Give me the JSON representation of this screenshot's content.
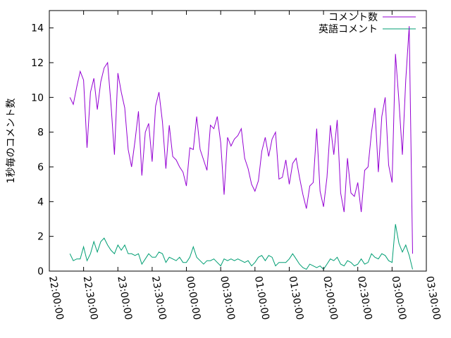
{
  "chart_data": {
    "type": "line",
    "ylabel": "1秒毎のコメント数",
    "ylim": [
      0,
      15
    ],
    "yticks": [
      0,
      2,
      4,
      6,
      8,
      10,
      12,
      14
    ],
    "xticks": [
      "22:00:00",
      "22:30:00",
      "23:00:00",
      "23:30:00",
      "00:00:00",
      "00:30:00",
      "01:00:00",
      "01:30:00",
      "02:00:00",
      "02:30:00",
      "03:00:00",
      "03:30:00"
    ],
    "xlim_minutes": [
      0,
      330
    ],
    "legend_position": "top-right",
    "grid": false,
    "x_step_minutes": 3,
    "x_start_minutes": 18,
    "series": [
      {
        "name": "コメント数",
        "color": "#9400d3",
        "values": [
          10.0,
          9.6,
          10.6,
          11.5,
          11.0,
          7.1,
          10.3,
          11.1,
          9.3,
          10.9,
          11.7,
          12.0,
          9.6,
          6.7,
          11.4,
          10.3,
          9.4,
          7.0,
          6.0,
          7.5,
          9.2,
          5.5,
          8.0,
          8.5,
          6.3,
          9.5,
          10.3,
          8.6,
          5.9,
          8.4,
          6.6,
          6.4,
          6.0,
          5.7,
          4.9,
          7.1,
          7.0,
          8.9,
          7.0,
          6.4,
          5.8,
          8.4,
          8.2,
          8.9,
          7.4,
          4.4,
          7.7,
          7.2,
          7.6,
          7.8,
          8.2,
          6.5,
          5.9,
          5.0,
          4.6,
          5.2,
          6.9,
          7.7,
          6.6,
          7.6,
          8.0,
          5.3,
          5.4,
          6.4,
          5.0,
          6.2,
          6.5,
          5.4,
          4.4,
          3.6,
          4.9,
          5.1,
          8.2,
          4.6,
          3.7,
          5.4,
          8.4,
          6.7,
          8.7,
          4.5,
          3.4,
          6.5,
          4.5,
          4.3,
          5.1,
          3.4,
          5.8,
          6.0,
          8.0,
          9.4,
          5.7,
          8.9,
          10.0,
          6.1,
          5.1,
          12.5,
          9.8,
          6.7,
          11.0,
          14.1,
          1.0
        ]
      },
      {
        "name": "英語コメント",
        "color": "#009e73",
        "values": [
          1.0,
          0.6,
          0.7,
          0.7,
          1.4,
          0.6,
          1.0,
          1.7,
          1.1,
          1.7,
          1.9,
          1.5,
          1.2,
          1.0,
          1.5,
          1.2,
          1.5,
          1.0,
          1.0,
          0.9,
          1.0,
          0.4,
          0.7,
          1.0,
          0.8,
          0.8,
          1.1,
          1.0,
          0.5,
          0.8,
          0.7,
          0.6,
          0.8,
          0.5,
          0.5,
          0.8,
          1.4,
          0.8,
          0.6,
          0.4,
          0.6,
          0.6,
          0.7,
          0.5,
          0.3,
          0.7,
          0.6,
          0.7,
          0.6,
          0.7,
          0.6,
          0.5,
          0.6,
          0.3,
          0.5,
          0.8,
          0.9,
          0.6,
          0.9,
          0.8,
          0.3,
          0.5,
          0.5,
          0.5,
          0.7,
          1.0,
          0.7,
          0.4,
          0.2,
          0.1,
          0.4,
          0.3,
          0.2,
          0.3,
          0.1,
          0.4,
          0.7,
          0.6,
          0.8,
          0.4,
          0.3,
          0.6,
          0.5,
          0.3,
          0.4,
          0.7,
          0.4,
          0.5,
          1.0,
          0.8,
          0.7,
          1.0,
          0.9,
          0.6,
          0.5,
          2.7,
          1.6,
          1.1,
          1.5,
          0.9,
          0.1
        ]
      }
    ]
  }
}
